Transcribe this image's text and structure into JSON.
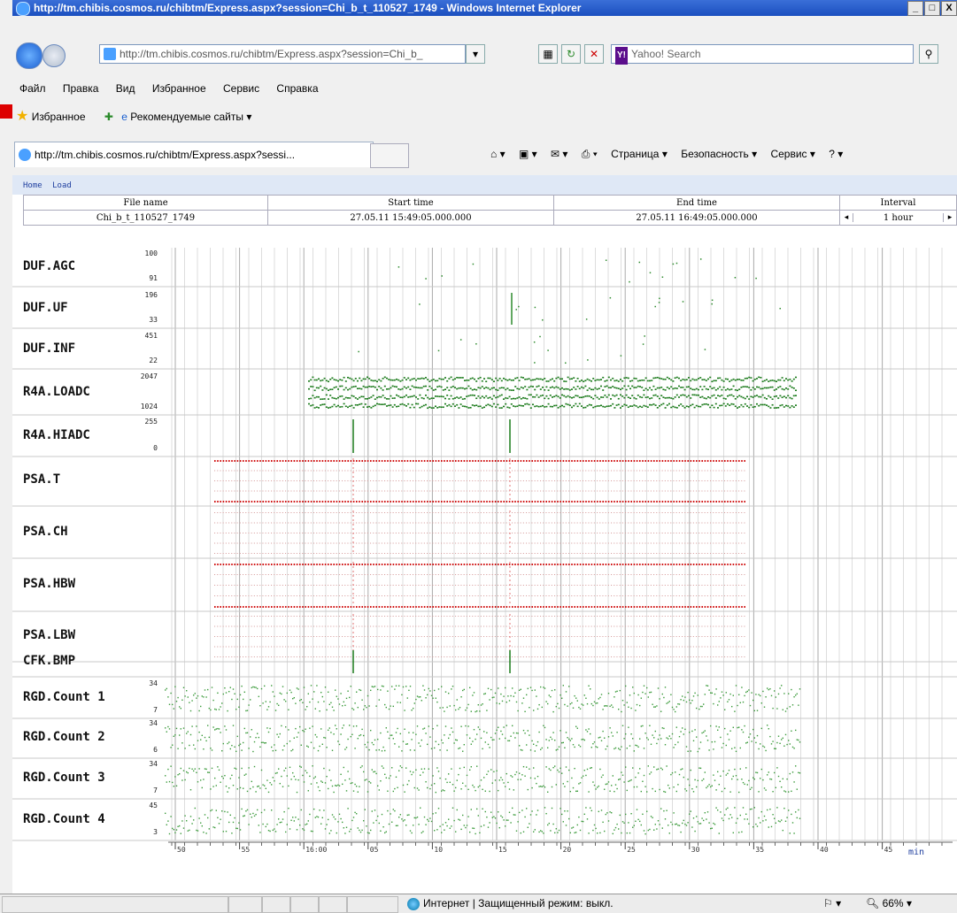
{
  "window": {
    "title": "http://tm.chibis.cosmos.ru/chibtm/Express.aspx?session=Chi_b_t_110527_1749 - Windows Internet Explorer",
    "buttons": [
      "_",
      "□",
      "X"
    ]
  },
  "addressbar": {
    "url": "http://tm.chibis.cosmos.ru/chibtm/Express.aspx?session=Chi_b_",
    "search_placeholder": "Yahoo! Search",
    "yahoo_badge": "Y!"
  },
  "menu": [
    "Файл",
    "Правка",
    "Вид",
    "Избранное",
    "Сервис",
    "Справка"
  ],
  "favorites": {
    "favorites_label": "Избранное",
    "suggested_label": "Рекомендуемые сайты ▾"
  },
  "tab": {
    "title": "http://tm.chibis.cosmos.ru/chibtm/Express.aspx?sessi..."
  },
  "commandbar": [
    "Страница ▾",
    "Безопасность ▾",
    "Сервис ▾"
  ],
  "page": {
    "crumbs": [
      "Home",
      "Load"
    ],
    "headers": {
      "file_name": "File name",
      "start_time": "Start time",
      "end_time": "End time",
      "interval": "Interval"
    },
    "values": {
      "file_name": "Chi_b_t_110527_1749",
      "start_time": "27.05.11 15:49:05.000.000",
      "end_time": "27.05.11 16:49:05.000.000",
      "interval": "1 hour"
    }
  },
  "channels": [
    {
      "name": "DUF.AGC",
      "max": "100",
      "min": "91",
      "color": "#2e8b2e",
      "style": "sparse"
    },
    {
      "name": "DUF.UF",
      "max": "196",
      "min": "33",
      "color": "#2e8b2e",
      "style": "sparse"
    },
    {
      "name": "DUF.INF",
      "max": "451",
      "min": "22",
      "color": "#2e8b2e",
      "style": "sparse"
    },
    {
      "name": "R4A.LOADC",
      "max": "2047",
      "min": "1024",
      "color": "#1a7a1a",
      "style": "bands"
    },
    {
      "name": "R4A.HIADC",
      "max": "255",
      "min": "0",
      "color": "#1a7a1a",
      "style": "spikes"
    },
    {
      "name": "PSA.T",
      "max": "",
      "min": "",
      "color": "#c81818",
      "style": "dotted"
    },
    {
      "name": "PSA.CH",
      "max": "",
      "min": "",
      "color": "#c81818",
      "style": "dotted"
    },
    {
      "name": "PSA.HBW",
      "max": "",
      "min": "",
      "color": "#c81818",
      "style": "dotted"
    },
    {
      "name": "PSA.LBW",
      "max": "",
      "min": "",
      "color": "#c81818",
      "style": "dotted"
    },
    {
      "name": "CFK.BMP",
      "max": "",
      "min": "",
      "color": "#1a7a1a",
      "style": "spikes"
    },
    {
      "name": "RGD.Count 1",
      "max": "34",
      "min": "7",
      "color": "#3a9a3a",
      "style": "noise"
    },
    {
      "name": "RGD.Count 2",
      "max": "34",
      "min": "6",
      "color": "#3a9a3a",
      "style": "noise"
    },
    {
      "name": "RGD.Count 3",
      "max": "34",
      "min": "7",
      "color": "#3a9a3a",
      "style": "noise"
    },
    {
      "name": "RGD.Count 4",
      "max": "45",
      "min": "3",
      "color": "#3a9a3a",
      "style": "noise"
    }
  ],
  "axis": {
    "ticks": [
      "50",
      "55",
      "16:00",
      "05",
      "10",
      "15",
      "20",
      "25",
      "30",
      "35",
      "40",
      "45"
    ],
    "unit": "min"
  },
  "status": {
    "zone": "Интернет | Защищенный режим: выкл.",
    "zoom": "66%"
  }
}
